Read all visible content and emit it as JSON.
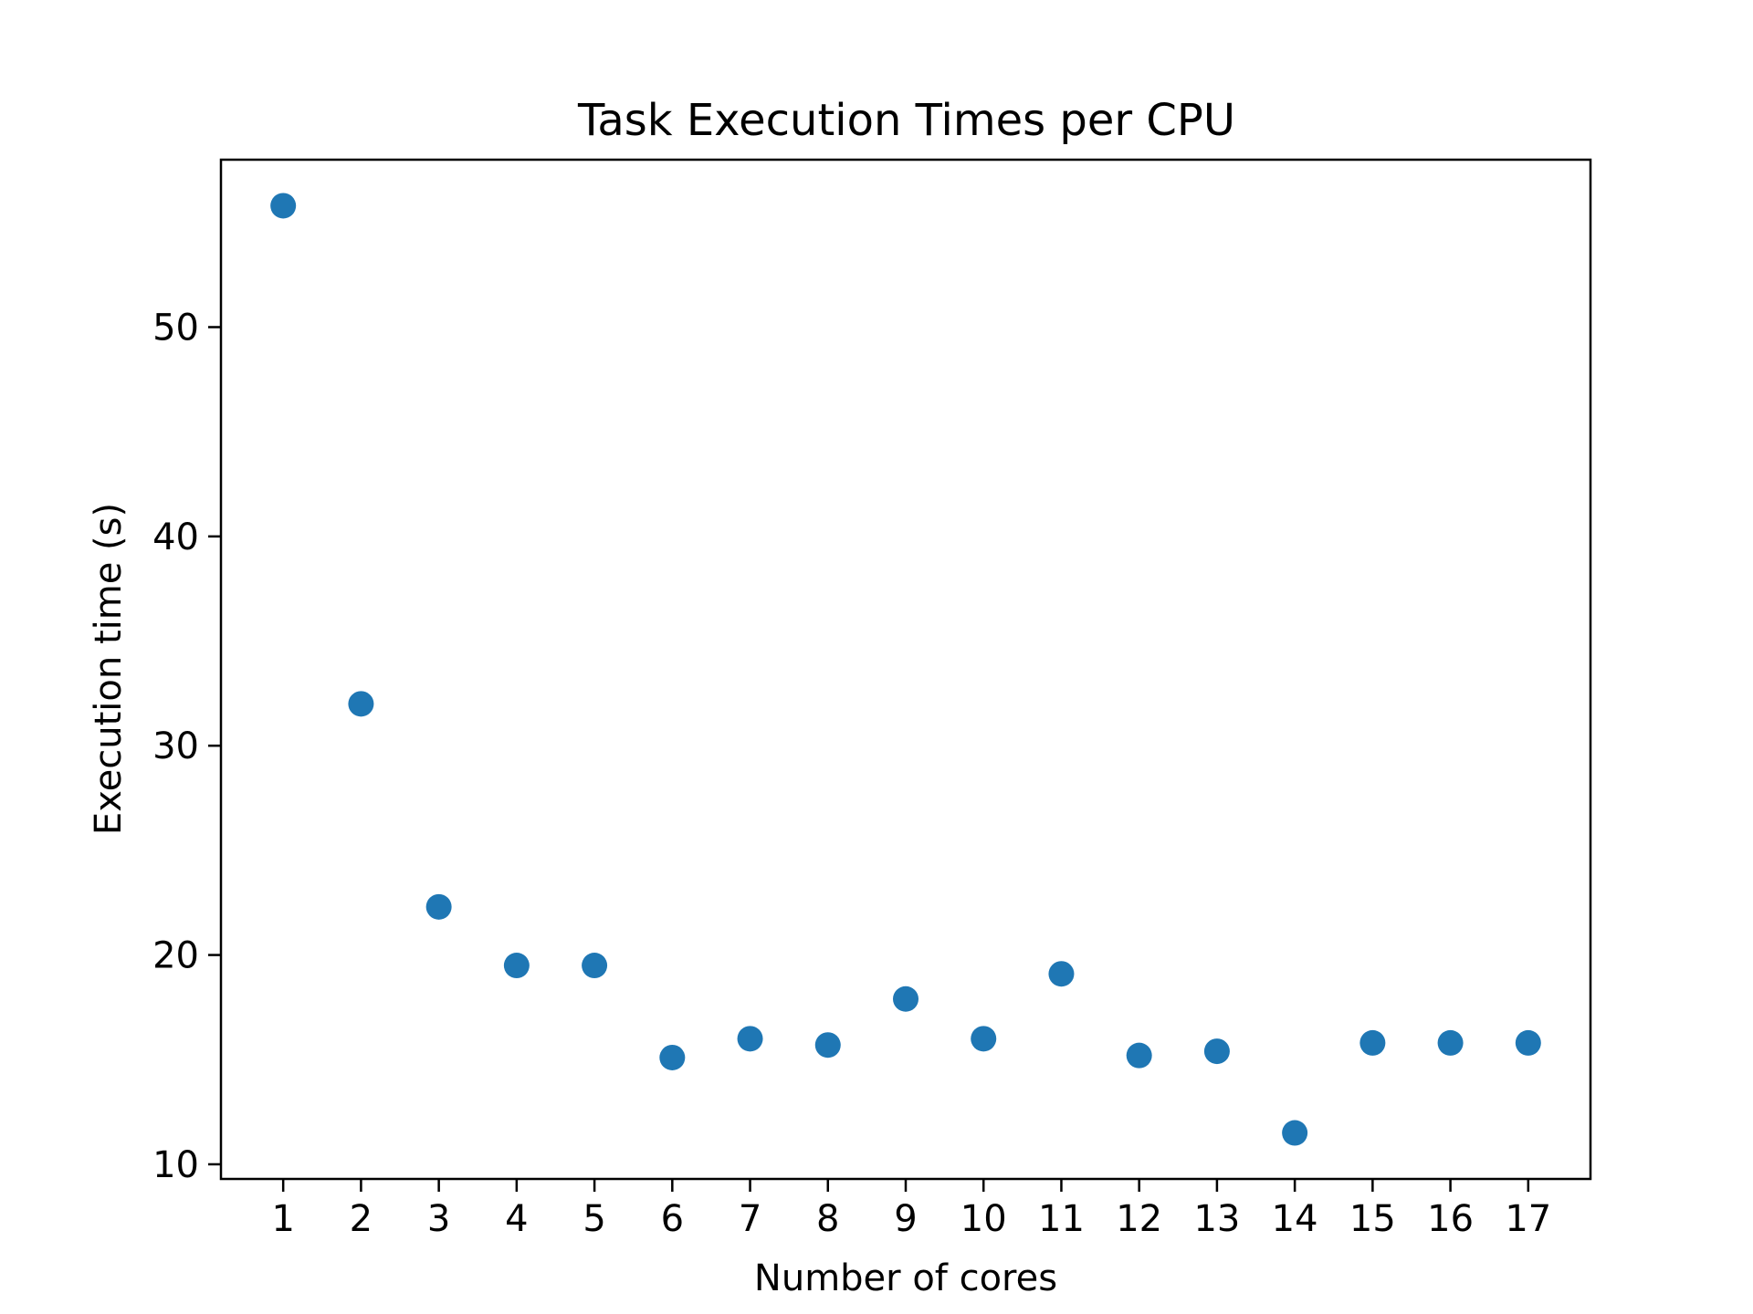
{
  "chart_data": {
    "type": "scatter",
    "title": "Task Execution Times per CPU",
    "xlabel": "Number of cores",
    "ylabel": "Execution time (s)",
    "x": [
      1,
      2,
      3,
      4,
      5,
      6,
      7,
      8,
      9,
      10,
      11,
      12,
      13,
      14,
      15,
      16,
      17
    ],
    "y": [
      55.8,
      32.0,
      22.3,
      19.5,
      19.5,
      15.1,
      16.0,
      15.7,
      17.9,
      16.0,
      19.1,
      15.2,
      15.4,
      11.5,
      15.8,
      15.8,
      15.8
    ],
    "xticks": [
      "1",
      "2",
      "3",
      "4",
      "5",
      "6",
      "7",
      "8",
      "9",
      "10",
      "11",
      "12",
      "13",
      "14",
      "15",
      "16",
      "17"
    ],
    "yticks": [
      "10",
      "20",
      "30",
      "40",
      "50"
    ],
    "xlim": [
      0.2,
      17.8
    ],
    "ylim": [
      9.3,
      58.0
    ],
    "grid": false,
    "marker_color": "#1f77b4"
  }
}
